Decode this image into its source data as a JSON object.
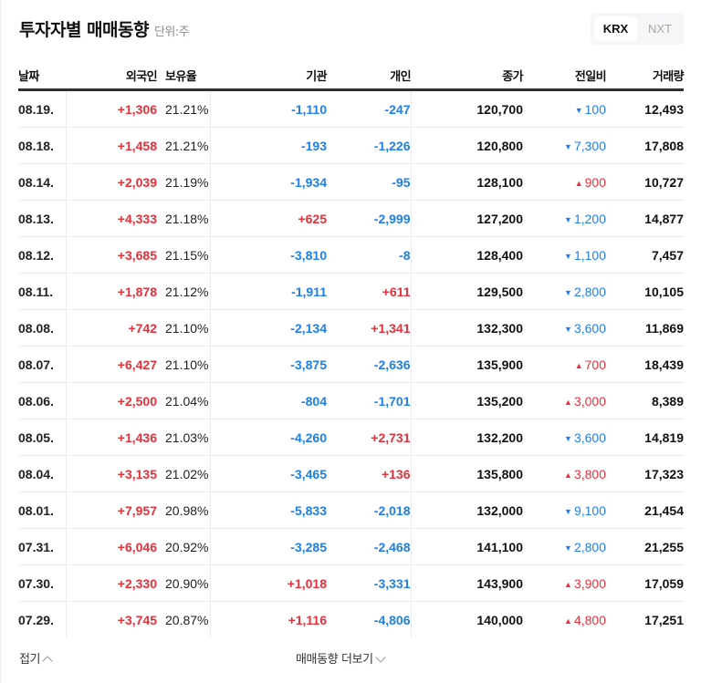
{
  "header": {
    "title": "투자자별 매매동향",
    "unit": "단위:주"
  },
  "market_toggle": {
    "options": [
      "KRX",
      "NXT"
    ],
    "selected": "KRX"
  },
  "table": {
    "columns": [
      "날짜",
      "외국인",
      "보유율",
      "기관",
      "개인",
      "종가",
      "전일비",
      "거래량"
    ],
    "rows": [
      {
        "date": "08.19.",
        "foreign": "+1,306",
        "foreign_dir": "up",
        "holding": "21.21%",
        "inst": "-1,110",
        "inst_dir": "down",
        "indiv": "-247",
        "indiv_dir": "down",
        "close": "120,700",
        "change": "100",
        "change_dir": "down",
        "volume": "12,493"
      },
      {
        "date": "08.18.",
        "foreign": "+1,458",
        "foreign_dir": "up",
        "holding": "21.21%",
        "inst": "-193",
        "inst_dir": "down",
        "indiv": "-1,226",
        "indiv_dir": "down",
        "close": "120,800",
        "change": "7,300",
        "change_dir": "down",
        "volume": "17,808"
      },
      {
        "date": "08.14.",
        "foreign": "+2,039",
        "foreign_dir": "up",
        "holding": "21.19%",
        "inst": "-1,934",
        "inst_dir": "down",
        "indiv": "-95",
        "indiv_dir": "down",
        "close": "128,100",
        "change": "900",
        "change_dir": "up",
        "volume": "10,727"
      },
      {
        "date": "08.13.",
        "foreign": "+4,333",
        "foreign_dir": "up",
        "holding": "21.18%",
        "inst": "+625",
        "inst_dir": "up",
        "indiv": "-2,999",
        "indiv_dir": "down",
        "close": "127,200",
        "change": "1,200",
        "change_dir": "down",
        "volume": "14,877"
      },
      {
        "date": "08.12.",
        "foreign": "+3,685",
        "foreign_dir": "up",
        "holding": "21.15%",
        "inst": "-3,810",
        "inst_dir": "down",
        "indiv": "-8",
        "indiv_dir": "down",
        "close": "128,400",
        "change": "1,100",
        "change_dir": "down",
        "volume": "7,457"
      },
      {
        "date": "08.11.",
        "foreign": "+1,878",
        "foreign_dir": "up",
        "holding": "21.12%",
        "inst": "-1,911",
        "inst_dir": "down",
        "indiv": "+611",
        "indiv_dir": "up",
        "close": "129,500",
        "change": "2,800",
        "change_dir": "down",
        "volume": "10,105"
      },
      {
        "date": "08.08.",
        "foreign": "+742",
        "foreign_dir": "up",
        "holding": "21.10%",
        "inst": "-2,134",
        "inst_dir": "down",
        "indiv": "+1,341",
        "indiv_dir": "up",
        "close": "132,300",
        "change": "3,600",
        "change_dir": "down",
        "volume": "11,869"
      },
      {
        "date": "08.07.",
        "foreign": "+6,427",
        "foreign_dir": "up",
        "holding": "21.10%",
        "inst": "-3,875",
        "inst_dir": "down",
        "indiv": "-2,636",
        "indiv_dir": "down",
        "close": "135,900",
        "change": "700",
        "change_dir": "up",
        "volume": "18,439"
      },
      {
        "date": "08.06.",
        "foreign": "+2,500",
        "foreign_dir": "up",
        "holding": "21.04%",
        "inst": "-804",
        "inst_dir": "down",
        "indiv": "-1,701",
        "indiv_dir": "down",
        "close": "135,200",
        "change": "3,000",
        "change_dir": "up",
        "volume": "8,389"
      },
      {
        "date": "08.05.",
        "foreign": "+1,436",
        "foreign_dir": "up",
        "holding": "21.03%",
        "inst": "-4,260",
        "inst_dir": "down",
        "indiv": "+2,731",
        "indiv_dir": "up",
        "close": "132,200",
        "change": "3,600",
        "change_dir": "down",
        "volume": "14,819"
      },
      {
        "date": "08.04.",
        "foreign": "+3,135",
        "foreign_dir": "up",
        "holding": "21.02%",
        "inst": "-3,465",
        "inst_dir": "down",
        "indiv": "+136",
        "indiv_dir": "up",
        "close": "135,800",
        "change": "3,800",
        "change_dir": "up",
        "volume": "17,323"
      },
      {
        "date": "08.01.",
        "foreign": "+7,957",
        "foreign_dir": "up",
        "holding": "20.98%",
        "inst": "-5,833",
        "inst_dir": "down",
        "indiv": "-2,018",
        "indiv_dir": "down",
        "close": "132,000",
        "change": "9,100",
        "change_dir": "down",
        "volume": "21,454"
      },
      {
        "date": "07.31.",
        "foreign": "+6,046",
        "foreign_dir": "up",
        "holding": "20.92%",
        "inst": "-3,285",
        "inst_dir": "down",
        "indiv": "-2,468",
        "indiv_dir": "down",
        "close": "141,100",
        "change": "2,800",
        "change_dir": "down",
        "volume": "21,255"
      },
      {
        "date": "07.30.",
        "foreign": "+2,330",
        "foreign_dir": "up",
        "holding": "20.90%",
        "inst": "+1,018",
        "inst_dir": "up",
        "indiv": "-3,331",
        "indiv_dir": "down",
        "close": "143,900",
        "change": "3,900",
        "change_dir": "up",
        "volume": "17,059"
      },
      {
        "date": "07.29.",
        "foreign": "+3,745",
        "foreign_dir": "up",
        "holding": "20.87%",
        "inst": "+1,116",
        "inst_dir": "up",
        "indiv": "-4,806",
        "indiv_dir": "down",
        "close": "140,000",
        "change": "4,800",
        "change_dir": "up",
        "volume": "17,251"
      }
    ]
  },
  "icons": {
    "up": "▲",
    "down": "▼"
  },
  "colors": {
    "up": "#e8303a",
    "down": "#1e7ef0",
    "text": "#111111"
  },
  "footer": {
    "collapse_label": "접기",
    "more_label": "매매동향 더보기"
  }
}
